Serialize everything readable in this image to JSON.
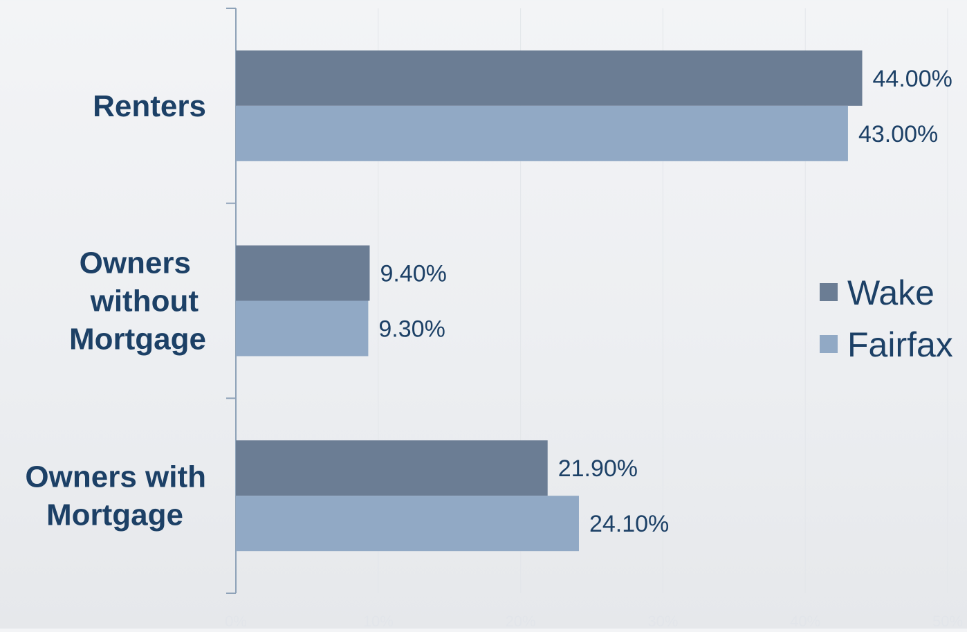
{
  "chart_data": {
    "type": "bar",
    "orientation": "horizontal",
    "categories": [
      "Renters",
      "Owners without Mortgage",
      "Owners with Mortgage"
    ],
    "category_lines": [
      [
        "Renters"
      ],
      [
        "Owners",
        "without",
        "Mortgage"
      ],
      [
        "Owners with",
        "Mortgage"
      ]
    ],
    "series": [
      {
        "name": "Wake",
        "values": [
          44.0,
          9.4,
          21.9
        ],
        "labels": [
          "44.00%",
          "9.40%",
          "21.90%"
        ],
        "color": "#6b7d94"
      },
      {
        "name": "Fairfax",
        "values": [
          43.0,
          9.3,
          24.1
        ],
        "labels": [
          "43.00%",
          "9.30%",
          "24.10%"
        ],
        "color": "#91a9c5"
      }
    ],
    "xlim": [
      0,
      50
    ],
    "x_ticks": [
      0,
      10,
      20,
      30,
      40,
      50
    ],
    "x_tick_labels": [
      "0%",
      "10%",
      "20%",
      "30%",
      "40%",
      "50%"
    ],
    "title": "",
    "xlabel": "",
    "ylabel": "",
    "grid": true,
    "legend_position": "right",
    "colors": {
      "category_text": "#1c4066",
      "value_text": "#1c4066",
      "axis": "#8ea2b8",
      "tick_text": "#e2e5ea"
    }
  }
}
